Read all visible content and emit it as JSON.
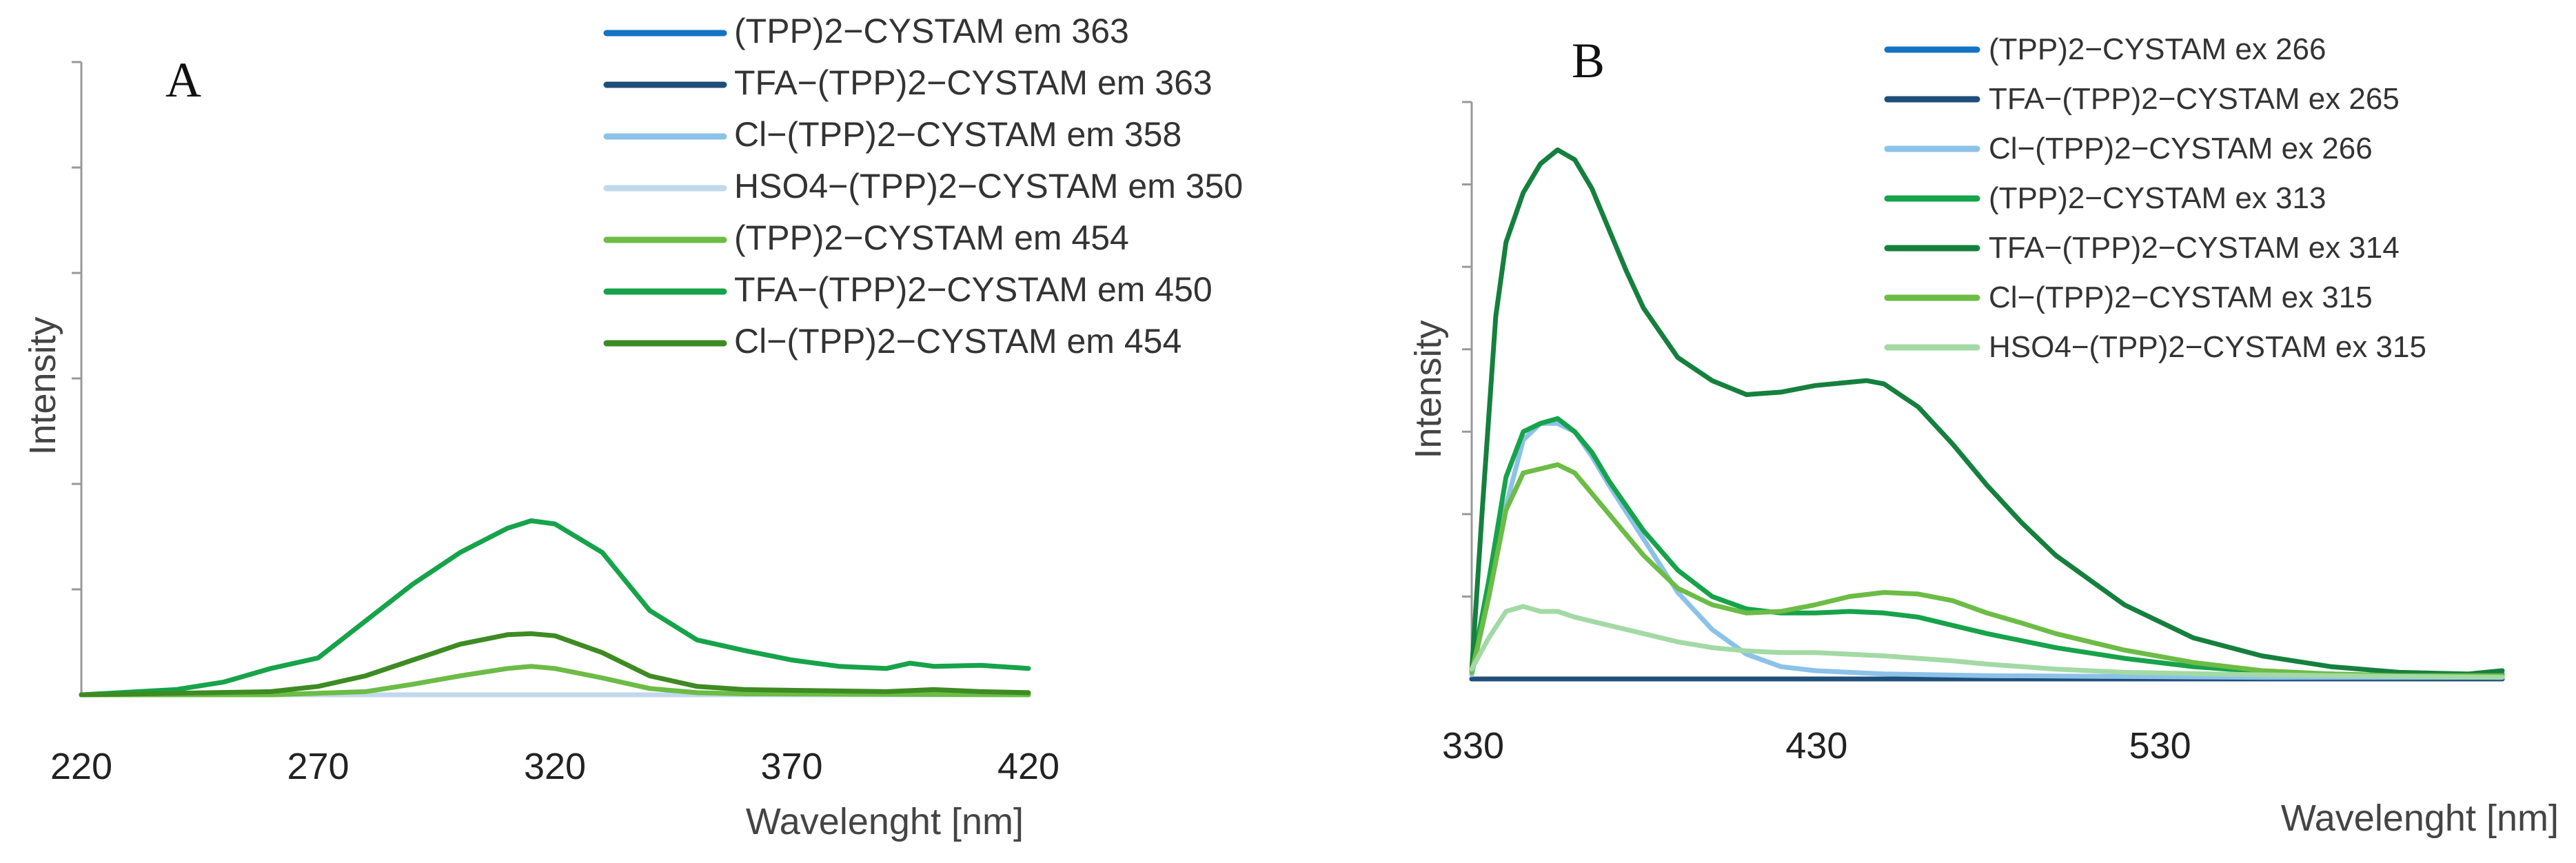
{
  "chart_data": [
    {
      "type": "line",
      "panel": "A",
      "title": "",
      "xlabel": "Wavelenght [nm]",
      "ylabel": "Intensity",
      "xlim": [
        220,
        420
      ],
      "ylim": [
        0,
        600
      ],
      "xticks": [
        220,
        270,
        320,
        370,
        420
      ],
      "grid": false,
      "legend": "top-right",
      "series": [
        {
          "name": "(TPP)2−CYSTAM em 363",
          "color": "#1473c4",
          "x": [
            220,
            420
          ],
          "y": [
            0,
            0
          ]
        },
        {
          "name": "TFA−(TPP)2−CYSTAM em 363",
          "color": "#1f4e79",
          "x": [
            220,
            420
          ],
          "y": [
            0,
            0
          ]
        },
        {
          "name": "Cl−(TPP)2−CYSTAM em 358",
          "color": "#8cc2e8",
          "x": [
            220,
            420
          ],
          "y": [
            0,
            0
          ]
        },
        {
          "name": "HSO4−(TPP)2−CYSTAM em 350",
          "color": "#c2d8ec",
          "x": [
            220,
            420
          ],
          "y": [
            0,
            0
          ]
        },
        {
          "name": "(TPP)2−CYSTAM em 454",
          "color": "#6cbc45",
          "x": [
            220,
            260,
            280,
            290,
            300,
            310,
            315,
            320,
            330,
            340,
            350,
            360,
            420
          ],
          "y": [
            0,
            0,
            3,
            10,
            18,
            25,
            27,
            25,
            16,
            6,
            2,
            1,
            0
          ]
        },
        {
          "name": "TFA−(TPP)2−CYSTAM em 450",
          "color": "#16a34a",
          "x": [
            220,
            240,
            250,
            260,
            270,
            280,
            290,
            300,
            310,
            315,
            320,
            330,
            340,
            350,
            360,
            370,
            380,
            390,
            395,
            400,
            410,
            420
          ],
          "y": [
            0,
            5,
            12,
            25,
            35,
            70,
            105,
            135,
            158,
            165,
            162,
            135,
            80,
            52,
            42,
            33,
            27,
            25,
            30,
            27,
            28,
            25
          ]
        },
        {
          "name": "Cl−(TPP)2−CYSTAM em 454",
          "color": "#3d8b22",
          "x": [
            220,
            260,
            270,
            280,
            290,
            300,
            310,
            315,
            320,
            330,
            340,
            350,
            360,
            390,
            400,
            410,
            420
          ],
          "y": [
            0,
            3,
            8,
            18,
            33,
            48,
            57,
            58,
            56,
            40,
            18,
            8,
            5,
            3,
            5,
            3,
            2
          ]
        }
      ]
    },
    {
      "type": "line",
      "panel": "B",
      "title": "",
      "xlabel": "Wavelenght [nm]",
      "ylabel": "Intensity",
      "xlim": [
        330,
        630
      ],
      "ylim": [
        0,
        700
      ],
      "xticks": [
        330,
        430,
        530
      ],
      "grid": false,
      "legend": "top-right",
      "series": [
        {
          "name": "(TPP)2−CYSTAM ex 266",
          "color": "#1473c4",
          "x": [
            330,
            630
          ],
          "y": [
            0,
            0
          ]
        },
        {
          "name": "TFA−(TPP)2−CYSTAM ex 265",
          "color": "#1f4e79",
          "x": [
            330,
            630
          ],
          "y": [
            0,
            0
          ]
        },
        {
          "name": "Cl−(TPP)2−CYSTAM ex 266",
          "color": "#8cc2e8",
          "x": [
            330,
            335,
            340,
            345,
            350,
            355,
            360,
            365,
            370,
            380,
            390,
            400,
            410,
            420,
            430,
            450,
            480,
            520,
            560,
            600,
            630
          ],
          "y": [
            5,
            100,
            210,
            290,
            310,
            310,
            300,
            270,
            235,
            170,
            105,
            60,
            30,
            15,
            10,
            6,
            4,
            3,
            2,
            2,
            2
          ]
        },
        {
          "name": "(TPP)2−CYSTAM ex 313",
          "color": "#16a34a",
          "x": [
            330,
            335,
            340,
            345,
            350,
            355,
            360,
            365,
            370,
            380,
            390,
            400,
            410,
            420,
            430,
            440,
            450,
            460,
            470,
            480,
            500,
            520,
            540,
            560,
            580,
            600,
            630
          ],
          "y": [
            10,
            120,
            245,
            300,
            310,
            316,
            300,
            275,
            240,
            180,
            132,
            100,
            85,
            80,
            80,
            82,
            80,
            75,
            65,
            55,
            38,
            25,
            15,
            9,
            6,
            4,
            6
          ]
        },
        {
          "name": "TFA−(TPP)2−CYSTAM ex 314",
          "color": "#15803d",
          "x": [
            330,
            333,
            337,
            340,
            345,
            350,
            355,
            360,
            365,
            370,
            375,
            380,
            390,
            400,
            410,
            420,
            430,
            440,
            445,
            450,
            460,
            470,
            480,
            490,
            500,
            520,
            540,
            560,
            580,
            600,
            620,
            630
          ],
          "y": [
            10,
            200,
            440,
            530,
            590,
            625,
            642,
            630,
            595,
            545,
            495,
            450,
            390,
            362,
            345,
            348,
            356,
            360,
            362,
            358,
            330,
            285,
            235,
            190,
            150,
            90,
            50,
            28,
            15,
            8,
            6,
            10
          ]
        },
        {
          "name": "Cl−(TPP)2−CYSTAM ex 315",
          "color": "#6cbc45",
          "x": [
            330,
            335,
            340,
            345,
            350,
            355,
            360,
            370,
            380,
            390,
            400,
            410,
            420,
            430,
            440,
            450,
            460,
            470,
            480,
            490,
            500,
            520,
            540,
            560,
            580,
            600,
            630
          ],
          "y": [
            8,
            100,
            205,
            250,
            255,
            260,
            250,
            200,
            150,
            110,
            90,
            80,
            82,
            90,
            100,
            105,
            103,
            95,
            80,
            68,
            55,
            35,
            20,
            10,
            6,
            4,
            4
          ]
        },
        {
          "name": "HSO4−(TPP)2−CYSTAM ex 315",
          "color": "#a3d9a5",
          "x": [
            330,
            335,
            340,
            345,
            350,
            355,
            360,
            370,
            380,
            390,
            400,
            410,
            420,
            430,
            440,
            450,
            460,
            470,
            480,
            500,
            520,
            560,
            600,
            630
          ],
          "y": [
            12,
            50,
            82,
            88,
            82,
            82,
            75,
            65,
            55,
            45,
            38,
            34,
            32,
            32,
            30,
            28,
            25,
            22,
            18,
            12,
            8,
            5,
            3,
            2
          ]
        }
      ]
    }
  ]
}
